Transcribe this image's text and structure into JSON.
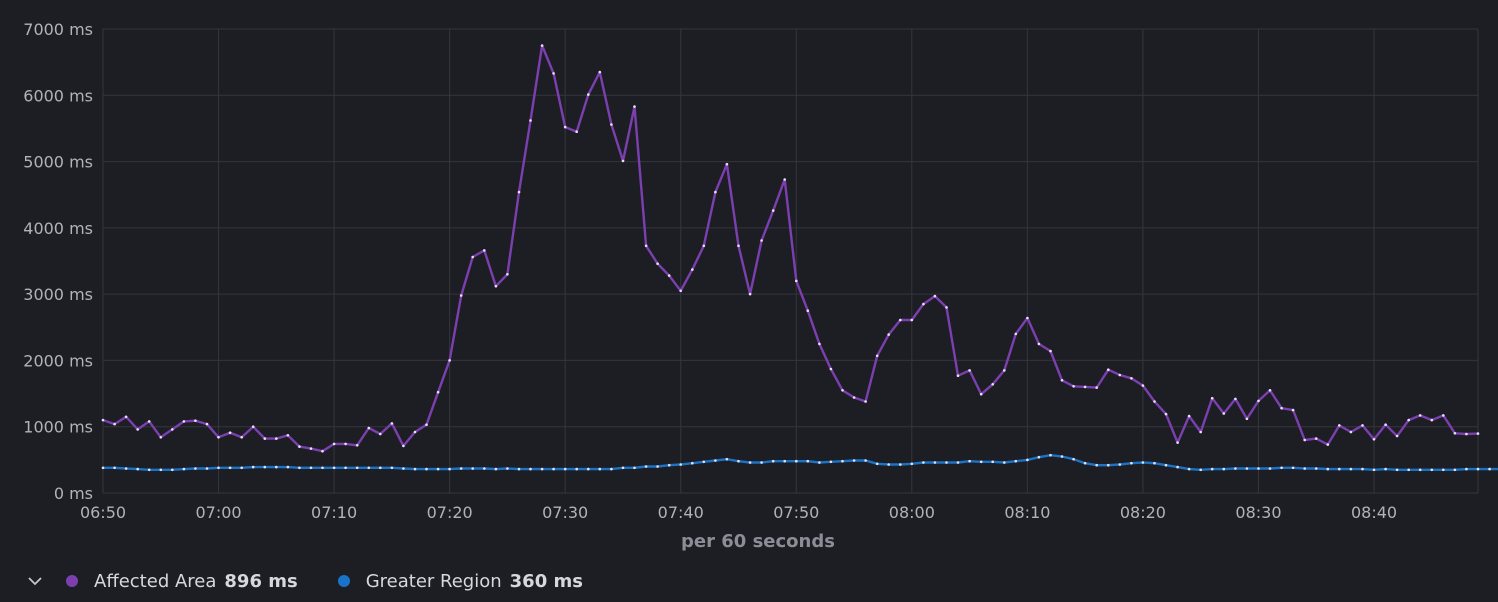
{
  "colors": {
    "affected": "#7b3fb0",
    "greater": "#1a73c6"
  },
  "legend": {
    "items": [
      {
        "name": "Affected Area",
        "value": "896 ms"
      },
      {
        "name": "Greater Region",
        "value": "360 ms"
      }
    ]
  },
  "chart_data": {
    "type": "line",
    "xlabel": "per 60 seconds",
    "ylabel": "",
    "ylim": [
      0,
      7000
    ],
    "yticks": [
      0,
      1000,
      2000,
      3000,
      4000,
      5000,
      6000,
      7000
    ],
    "ytick_labels": [
      "0 ms",
      "1000 ms",
      "2000 ms",
      "3000 ms",
      "4000 ms",
      "5000 ms",
      "6000 ms",
      "7000 ms"
    ],
    "xlim_minutes": [
      410,
      529
    ],
    "xticks_minutes": [
      410,
      420,
      430,
      440,
      450,
      460,
      470,
      480,
      490,
      500,
      510,
      520
    ],
    "xtick_labels": [
      "06:50",
      "07:00",
      "07:10",
      "07:20",
      "07:30",
      "07:40",
      "07:50",
      "08:00",
      "08:10",
      "08:20",
      "08:30",
      "08:40"
    ],
    "grid": true,
    "legend_position": "bottom-left",
    "x_start_minute": 410,
    "x_step_minutes": 1,
    "series": [
      {
        "name": "Affected Area",
        "values": [
          1100,
          1040,
          1150,
          960,
          1080,
          840,
          960,
          1080,
          1090,
          1040,
          840,
          910,
          840,
          1000,
          820,
          820,
          870,
          700,
          670,
          630,
          740,
          740,
          720,
          980,
          890,
          1050,
          710,
          920,
          1030,
          1520,
          2000,
          2980,
          3560,
          3660,
          3120,
          3300,
          4540,
          5620,
          6750,
          6330,
          5520,
          5450,
          6010,
          6350,
          5560,
          5010,
          5830,
          3730,
          3460,
          3280,
          3050,
          3370,
          3730,
          4540,
          4960,
          3730,
          3000,
          3810,
          4260,
          4730,
          3200,
          2750,
          2250,
          1870,
          1550,
          1440,
          1380,
          2070,
          2390,
          2610,
          2610,
          2850,
          2970,
          2800,
          1770,
          1850,
          1490,
          1640,
          1850,
          2400,
          2640,
          2250,
          2140,
          1700,
          1610,
          1600,
          1590,
          1860,
          1780,
          1730,
          1620,
          1380,
          1190,
          760,
          1160,
          920,
          1430,
          1200,
          1420,
          1120,
          1390,
          1550,
          1280,
          1250,
          800,
          820,
          730,
          1020,
          920,
          1020,
          810,
          1030,
          860,
          1100,
          1170,
          1100,
          1170,
          900,
          890,
          896
        ]
      },
      {
        "name": "Greater Region",
        "values": [
          380,
          380,
          370,
          360,
          350,
          350,
          350,
          360,
          370,
          370,
          380,
          380,
          380,
          390,
          390,
          390,
          390,
          380,
          380,
          380,
          380,
          380,
          380,
          380,
          380,
          380,
          370,
          360,
          360,
          360,
          360,
          370,
          370,
          370,
          360,
          370,
          360,
          360,
          360,
          360,
          360,
          360,
          360,
          360,
          360,
          380,
          380,
          400,
          400,
          420,
          430,
          450,
          470,
          490,
          510,
          480,
          460,
          460,
          480,
          480,
          480,
          480,
          460,
          470,
          480,
          490,
          490,
          440,
          430,
          430,
          440,
          460,
          460,
          460,
          460,
          480,
          470,
          470,
          460,
          480,
          500,
          540,
          570,
          550,
          510,
          450,
          420,
          420,
          430,
          450,
          460,
          450,
          420,
          390,
          360,
          350,
          360,
          360,
          370,
          370,
          370,
          370,
          380,
          380,
          370,
          370,
          360,
          360,
          360,
          360,
          350,
          360,
          350,
          350,
          350,
          350,
          350,
          350,
          360,
          360,
          360,
          360
        ]
      }
    ]
  }
}
